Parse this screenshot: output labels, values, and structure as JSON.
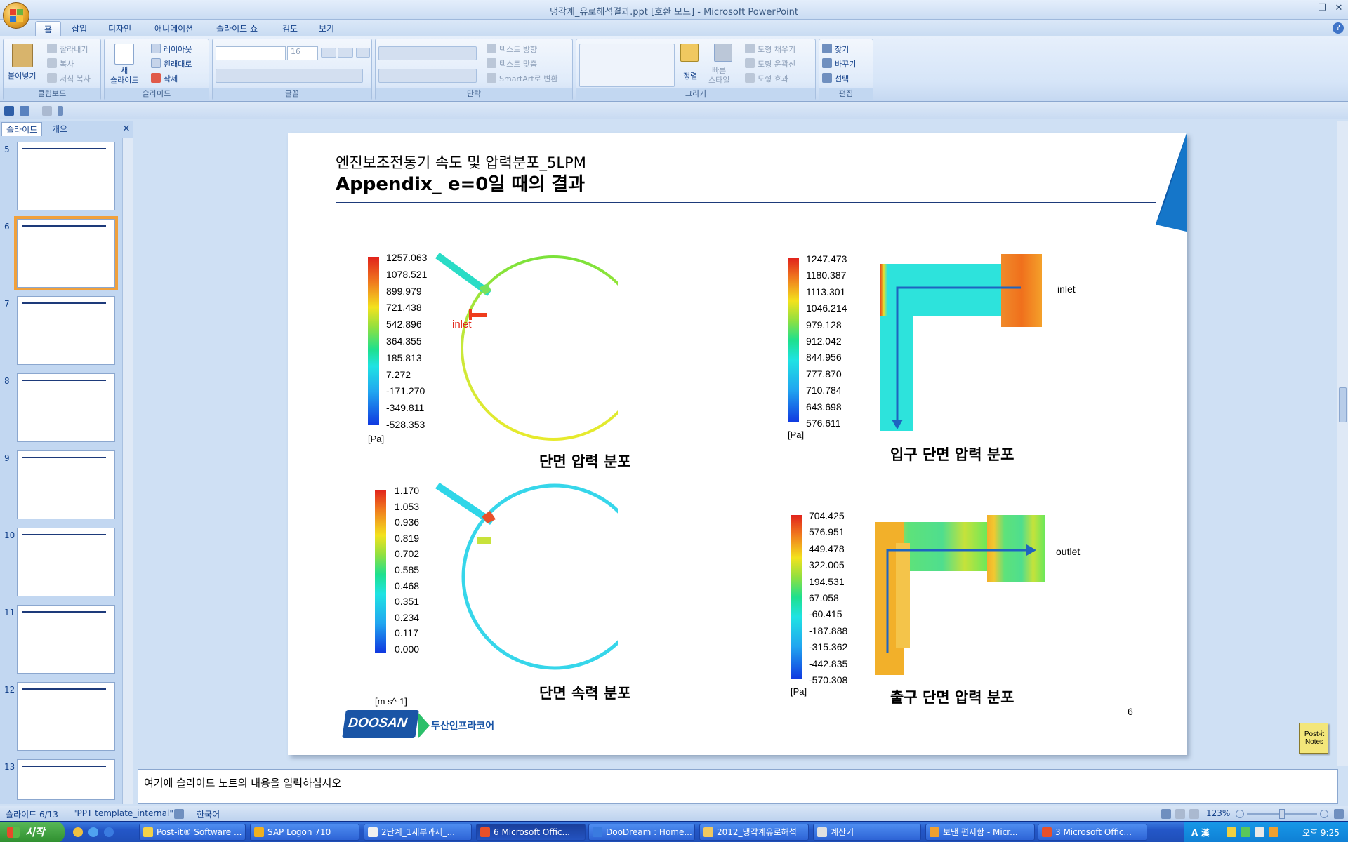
{
  "window": {
    "title": "냉각계_유로해석결과.ppt [호환 모드] - Microsoft PowerPoint",
    "minimize": "–",
    "restore": "❐",
    "close": "✕",
    "help": "?"
  },
  "ribbon_tabs": [
    "홈",
    "삽입",
    "디자인",
    "애니메이션",
    "슬라이드 쇼",
    "검토",
    "보기"
  ],
  "ribbon": {
    "clipboard": {
      "label": "클립보드",
      "paste": "붙여넣기",
      "cut": "잘라내기",
      "copy": "복사",
      "format_painter": "서식 복사"
    },
    "slides": {
      "label": "슬라이드",
      "new_slide": "새\n슬라이드",
      "layout": "레이아웃",
      "reset": "원래대로",
      "delete": "삭제"
    },
    "font": {
      "label": "글꼴",
      "size": "16"
    },
    "paragraph": {
      "label": "단락",
      "text_direction": "텍스트 방향",
      "align_text": "텍스트 맞춤",
      "smartart": "SmartArt로 변환"
    },
    "drawing": {
      "label": "그리기",
      "arrange": "정렬",
      "quick_styles": "빠른\n스타일",
      "shape_fill": "도형 채우기",
      "shape_outline": "도형 윤곽선",
      "shape_effects": "도형 효과"
    },
    "editing": {
      "label": "편집",
      "find": "찾기",
      "replace": "바꾸기",
      "select": "선택"
    }
  },
  "left_panel": {
    "tabs": [
      "슬라이드",
      "개요"
    ],
    "close": "×",
    "thumbnails": [
      {
        "num": "5"
      },
      {
        "num": "6"
      },
      {
        "num": "7"
      },
      {
        "num": "8"
      },
      {
        "num": "9"
      },
      {
        "num": "10"
      },
      {
        "num": "11"
      },
      {
        "num": "12"
      },
      {
        "num": "13"
      }
    ]
  },
  "slide": {
    "subtitle": "엔진보조전동기 속도 및 압력분포_5LPM",
    "title": "Appendix_ e=0일 때의 결과",
    "page_number": "6",
    "company_logo": "DOOSAN",
    "company_name": "두산인프라코어",
    "panels": {
      "section_pressure": {
        "caption": "단면 압력 분포",
        "unit": "[Pa]",
        "ticks": [
          "1257.063",
          "1078.521",
          "899.979",
          "721.438",
          "542.896",
          "364.355",
          "185.813",
          "7.272",
          "-171.270",
          "-349.811",
          "-528.353"
        ],
        "annotation": "inlet"
      },
      "inlet_pressure": {
        "caption": "입구 단면 압력 분포",
        "unit": "[Pa]",
        "ticks": [
          "1247.473",
          "1180.387",
          "1113.301",
          "1046.214",
          "979.128",
          "912.042",
          "844.956",
          "777.870",
          "710.784",
          "643.698",
          "576.611"
        ],
        "annotation": "inlet"
      },
      "section_velocity": {
        "caption": "단면 속력 분포",
        "unit": "[m s^-1]",
        "ticks": [
          "1.170",
          "1.053",
          "0.936",
          "0.819",
          "0.702",
          "0.585",
          "0.468",
          "0.351",
          "0.234",
          "0.117",
          "0.000"
        ]
      },
      "outlet_pressure": {
        "caption": "출구 단면 압력 분포",
        "unit": "[Pa]",
        "ticks": [
          "704.425",
          "576.951",
          "449.478",
          "322.005",
          "194.531",
          "67.058",
          "-60.415",
          "-187.888",
          "-315.362",
          "-442.835",
          "-570.308"
        ],
        "annotation": "outlet"
      }
    }
  },
  "notes": {
    "placeholder": "여기에 슬라이드 노트의 내용을 입력하십시오"
  },
  "postit": {
    "label": "Post-it\nNotes"
  },
  "status": {
    "slide": "슬라이드 6/13",
    "theme": "\"PPT template_internal\"",
    "language": "한국어",
    "zoom": "123%"
  },
  "taskbar": {
    "start": "시작",
    "items": [
      "Post-it® Software ...",
      "SAP Logon 710",
      "2단계_1세부과제_...",
      "6 Microsoft Offic...",
      "DooDream : Home...",
      "2012_냉각계유로해석",
      "계산기",
      "보낸 편지함 - Micr...",
      "3 Microsoft Offic..."
    ],
    "active_index": 3,
    "tray_ime": "A 漢",
    "clock": "오후 9:25"
  }
}
